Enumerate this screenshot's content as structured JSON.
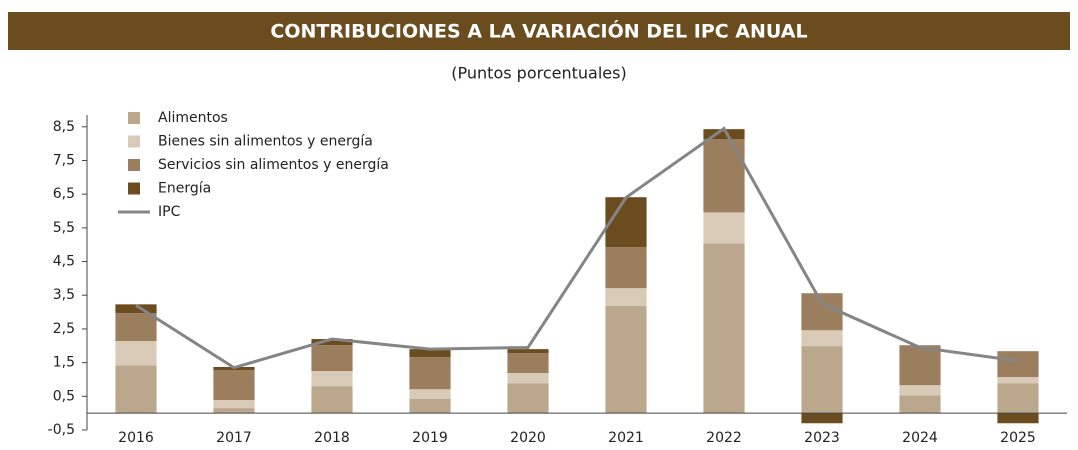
{
  "chart_data": {
    "type": "bar",
    "stacked": true,
    "title": "CONTRIBUCIONES A LA VARIACIÓN DEL IPC ANUAL",
    "subtitle": "(Puntos porcentuales)",
    "categories": [
      "2016",
      "2017",
      "2018",
      "2019",
      "2020",
      "2021",
      "2022",
      "2023",
      "2024",
      "2025"
    ],
    "series": [
      {
        "name": "Alimentos",
        "color": "#bba88c",
        "values": [
          1.42,
          0.15,
          0.8,
          0.42,
          0.89,
          3.18,
          5.04,
          1.99,
          0.53,
          0.89
        ]
      },
      {
        "name": "Bienes sin alimentos y energía",
        "color": "#d9cab7",
        "values": [
          0.72,
          0.24,
          0.45,
          0.29,
          0.3,
          0.53,
          0.92,
          0.47,
          0.3,
          0.18
        ]
      },
      {
        "name": "Servicios sin alimentos y energía",
        "color": "#9b7e5e",
        "values": [
          0.83,
          0.89,
          0.77,
          0.95,
          0.59,
          1.22,
          2.17,
          1.1,
          1.16,
          0.77
        ]
      },
      {
        "name": "Energía",
        "color": "#6b4c1e",
        "values": [
          0.26,
          0.09,
          0.18,
          0.24,
          0.12,
          1.48,
          0.3,
          -0.3,
          0.02,
          -0.3
        ]
      },
      {
        "name": "IPC",
        "color": "#858585",
        "type": "line",
        "values": [
          3.2,
          1.35,
          2.2,
          1.9,
          1.95,
          6.4,
          8.45,
          3.25,
          1.95,
          1.55
        ]
      }
    ],
    "ylim": [
      -0.5,
      8.85
    ],
    "yticks": [
      {
        "value": -0.5,
        "label": "-0,5"
      },
      {
        "value": 0.5,
        "label": "0,5"
      },
      {
        "value": 1.5,
        "label": "1,5"
      },
      {
        "value": 2.5,
        "label": "2,5"
      },
      {
        "value": 3.5,
        "label": "3,5"
      },
      {
        "value": 4.5,
        "label": "4,5"
      },
      {
        "value": 5.5,
        "label": "5,5"
      },
      {
        "value": 6.5,
        "label": "6,5"
      },
      {
        "value": 7.5,
        "label": "7,5"
      },
      {
        "value": 8.5,
        "label": "8,5"
      }
    ],
    "legend": "upper left"
  }
}
